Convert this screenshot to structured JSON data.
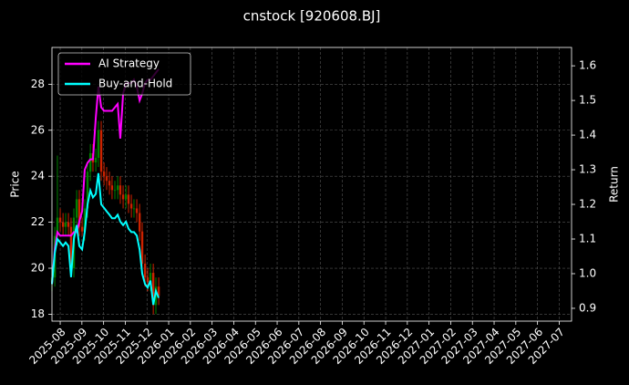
{
  "chart_data": {
    "type": "candlestick",
    "title": "cnstock [920608.BJ]",
    "y_label": "Price",
    "y2_label": "Return",
    "x": [
      -0.38,
      -0.25,
      -0.13,
      0,
      0.13,
      0.25,
      0.38,
      0.5,
      0.63,
      0.76,
      0.88,
      1.01,
      1.13,
      1.26,
      1.39,
      1.51,
      1.64,
      1.76,
      1.89,
      2.02,
      2.14,
      2.27,
      2.39,
      2.52,
      2.65,
      2.77,
      2.9,
      3.03,
      3.15,
      3.28,
      3.4,
      3.53,
      3.66,
      3.78,
      3.91,
      4.03,
      4.16,
      4.29,
      4.41,
      4.54
    ],
    "open": [
      19.4,
      19.6,
      21.4,
      22.2,
      22.0,
      21.8,
      22.0,
      21.8,
      20.0,
      22.2,
      23.0,
      21.8,
      21.6,
      22.6,
      24.2,
      25.0,
      24.6,
      24.8,
      26.0,
      24.2,
      24.0,
      23.8,
      23.6,
      23.4,
      23.4,
      23.6,
      23.2,
      23.0,
      23.2,
      22.8,
      22.6,
      22.6,
      22.4,
      21.6,
      20.2,
      19.6,
      19.4,
      19.8,
      18.4,
      19.2
    ],
    "high": [
      20.0,
      21.8,
      24.9,
      22.6,
      22.4,
      22.4,
      22.4,
      22.2,
      22.6,
      23.4,
      23.4,
      22.2,
      23.0,
      24.6,
      25.4,
      25.4,
      25.2,
      26.4,
      26.4,
      24.6,
      24.4,
      24.2,
      24.0,
      23.8,
      24.0,
      24.0,
      23.6,
      23.6,
      23.6,
      23.2,
      23.0,
      23.0,
      22.8,
      22.0,
      20.6,
      20.0,
      20.2,
      20.2,
      19.6,
      19.6
    ],
    "low": [
      19.0,
      19.2,
      21.0,
      21.6,
      21.4,
      21.4,
      21.4,
      19.6,
      19.6,
      21.8,
      21.4,
      21.4,
      21.2,
      22.2,
      23.8,
      24.2,
      24.2,
      24.4,
      23.8,
      23.6,
      23.4,
      23.2,
      23.0,
      23.0,
      23.0,
      22.8,
      22.6,
      22.6,
      22.4,
      22.2,
      22.2,
      22.0,
      21.2,
      19.8,
      19.2,
      19.0,
      19.0,
      18.0,
      18.0,
      18.4
    ],
    "close": [
      19.6,
      21.4,
      22.2,
      22.0,
      21.8,
      22.0,
      21.8,
      20.0,
      22.2,
      23.0,
      21.8,
      21.6,
      22.6,
      24.2,
      25.0,
      24.6,
      24.8,
      26.0,
      24.2,
      24.0,
      23.8,
      23.6,
      23.4,
      23.4,
      23.6,
      23.2,
      23.0,
      23.2,
      22.8,
      22.6,
      22.6,
      22.4,
      21.6,
      20.2,
      19.6,
      19.4,
      19.8,
      18.4,
      19.2,
      18.8
    ],
    "up_color": "#008000",
    "down_color": "#cc2200",
    "series": [
      {
        "name": "AI Strategy",
        "color": "#ff00ff",
        "axis": "y2",
        "values": [
          0.97,
          1.07,
          1.12,
          1.11,
          1.11,
          1.11,
          1.11,
          1.11,
          1.12,
          1.12,
          1.15,
          1.18,
          1.3,
          1.32,
          1.33,
          1.33,
          1.45,
          1.54,
          1.48,
          1.47,
          1.47,
          1.47,
          1.47,
          1.48,
          1.49,
          1.39,
          1.52,
          1.55,
          1.55,
          1.55,
          1.56,
          1.54,
          1.5,
          1.52,
          1.55,
          1.56,
          1.56,
          1.57,
          1.58,
          1.59
        ]
      },
      {
        "name": "Buy-and-Hold",
        "color": "#00ffff",
        "axis": "y2",
        "values": [
          0.97,
          1.06,
          1.1,
          1.09,
          1.08,
          1.09,
          1.08,
          0.99,
          1.1,
          1.14,
          1.08,
          1.07,
          1.12,
          1.2,
          1.24,
          1.22,
          1.23,
          1.29,
          1.2,
          1.19,
          1.18,
          1.17,
          1.16,
          1.16,
          1.17,
          1.15,
          1.14,
          1.15,
          1.13,
          1.12,
          1.12,
          1.11,
          1.07,
          1.0,
          0.97,
          0.96,
          0.98,
          0.91,
          0.95,
          0.93
        ]
      }
    ],
    "xlim": [
      -0.38,
      23.57
    ],
    "xticks": [
      {
        "value": 0,
        "label": "2025-08"
      },
      {
        "value": 1,
        "label": "2025-09"
      },
      {
        "value": 2,
        "label": "2025-10"
      },
      {
        "value": 3,
        "label": "2025-11"
      },
      {
        "value": 4,
        "label": "2025-12"
      },
      {
        "value": 5,
        "label": "2026-01"
      },
      {
        "value": 6,
        "label": "2026-02"
      },
      {
        "value": 7,
        "label": "2026-03"
      },
      {
        "value": 8,
        "label": "2026-04"
      },
      {
        "value": 9,
        "label": "2026-05"
      },
      {
        "value": 10,
        "label": "2026-06"
      },
      {
        "value": 11,
        "label": "2026-07"
      },
      {
        "value": 12,
        "label": "2026-08"
      },
      {
        "value": 13,
        "label": "2026-09"
      },
      {
        "value": 14,
        "label": "2026-10"
      },
      {
        "value": 15,
        "label": "2026-11"
      },
      {
        "value": 16,
        "label": "2026-12"
      },
      {
        "value": 17,
        "label": "2027-01"
      },
      {
        "value": 18,
        "label": "2027-02"
      },
      {
        "value": 19,
        "label": "2027-03"
      },
      {
        "value": 20,
        "label": "2027-04"
      },
      {
        "value": 21,
        "label": "2027-05"
      },
      {
        "value": 22,
        "label": "2027-06"
      },
      {
        "value": 23,
        "label": "2027-07"
      }
    ],
    "ylim": [
      17.7,
      29.6
    ],
    "yticks": [
      18,
      20,
      22,
      24,
      26,
      28
    ],
    "y2lim": [
      0.863,
      1.653
    ],
    "y2ticks": [
      {
        "value": 0.9,
        "label": "0.9"
      },
      {
        "value": 1,
        "label": "1.0"
      },
      {
        "value": 1.1,
        "label": "1.1"
      },
      {
        "value": 1.2,
        "label": "1.2"
      },
      {
        "value": 1.3,
        "label": "1.3"
      },
      {
        "value": 1.4,
        "label": "1.4"
      },
      {
        "value": 1.5,
        "label": "1.5"
      },
      {
        "value": 1.6,
        "label": "1.6"
      }
    ],
    "grid": true,
    "legend": "upper left"
  }
}
